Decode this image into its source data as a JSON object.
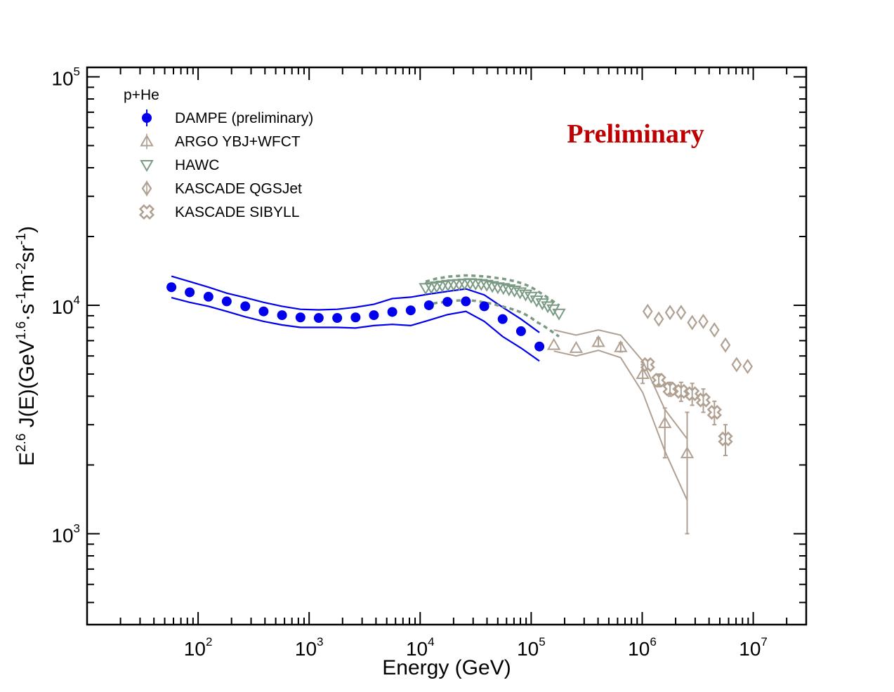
{
  "chart_data": {
    "type": "scatter",
    "title": "",
    "watermark": "Preliminary",
    "xlabel": "Energy (GeV)",
    "ylabel": {
      "base": "E",
      "exp": "2.6",
      "mid": " J(E)(GeV",
      "exp2": "1.6",
      "s": "·s",
      "exp3": "-1",
      "m": "m",
      "exp4": "-2",
      "sr": "sr",
      "exp5": "-1",
      "close": ")"
    },
    "x_scale": "log",
    "y_scale": "log",
    "xlim": [
      10,
      30000000
    ],
    "ylim": [
      400,
      110000
    ],
    "x_ticks": [
      {
        "value": 100,
        "base": "10",
        "exp": "2"
      },
      {
        "value": 1000,
        "base": "10",
        "exp": "3"
      },
      {
        "value": 10000,
        "base": "10",
        "exp": "4"
      },
      {
        "value": 100000,
        "base": "10",
        "exp": "5"
      },
      {
        "value": 1000000,
        "base": "10",
        "exp": "6"
      },
      {
        "value": 10000000,
        "base": "10",
        "exp": "7"
      }
    ],
    "y_ticks": [
      {
        "value": 1000,
        "base": "10",
        "exp": "3"
      },
      {
        "value": 10000,
        "base": "10",
        "exp": "4"
      },
      {
        "value": 100000,
        "base": "10",
        "exp": "5"
      }
    ],
    "legend_title": "p+He",
    "legend_position": "top-left",
    "series": [
      {
        "name": "DAMPE (preliminary)",
        "marker": "filled-circle",
        "color": "#0000ee",
        "x": [
          57.5,
          84,
          124,
          181,
          266,
          389,
          570,
          835,
          1220,
          1790,
          2620,
          3830,
          5610,
          8220,
          12000,
          17600,
          25800,
          37800,
          55300,
          81000,
          118600
        ],
        "y": [
          12000,
          11400,
          10900,
          10400,
          9900,
          9400,
          9050,
          8850,
          8800,
          8800,
          8850,
          9050,
          9350,
          9500,
          10000,
          10350,
          10400,
          9900,
          8700,
          7700,
          6600
        ],
        "band_upper": [
          13400,
          12700,
          12000,
          11300,
          10800,
          10300,
          9900,
          9600,
          9550,
          9600,
          9800,
          10100,
          10700,
          10850,
          11200,
          11500,
          11800,
          11100,
          9800,
          8700,
          7600
        ],
        "band_lower": [
          10800,
          10300,
          9900,
          9400,
          8900,
          8500,
          8200,
          8000,
          8000,
          8000,
          7950,
          8150,
          8250,
          8150,
          8600,
          9100,
          9400,
          8500,
          7300,
          6500,
          5700
        ]
      },
      {
        "name": "ARGO YBJ+WFCT",
        "marker": "open-triangle-up",
        "color": "#b0a092",
        "x": [
          160000,
          254000,
          403000,
          640000,
          1010000,
          1600000,
          2540000
        ],
        "y": [
          6700,
          6500,
          6900,
          6550,
          5000,
          3050,
          2250
        ],
        "y_err_upper": [
          0,
          0,
          300,
          300,
          500,
          500,
          1150
        ],
        "y_err_lower": [
          0,
          0,
          300,
          300,
          450,
          900,
          1250
        ],
        "band_upper": [
          7800,
          7400,
          7800,
          7400,
          5700,
          3500,
          2600
        ],
        "band_lower": [
          6300,
          6000,
          6350,
          5900,
          4150,
          2300,
          1400
        ]
      },
      {
        "name": "HAWC",
        "marker": "open-triangle-down",
        "color": "#7a9a84",
        "x": [
          11200,
          12600,
          14100,
          15800,
          17800,
          20000,
          22400,
          25100,
          28200,
          31600,
          35500,
          39800,
          44700,
          50100,
          56200,
          63100,
          70800,
          79400,
          89100,
          100000,
          112000,
          126000,
          141000,
          158000,
          178000
        ],
        "y": [
          11900,
          12000,
          12100,
          12200,
          12300,
          12350,
          12400,
          12450,
          12500,
          12450,
          12400,
          12300,
          12150,
          12000,
          11900,
          11750,
          11600,
          11400,
          11150,
          10900,
          10500,
          10200,
          9900,
          9600,
          9200
        ],
        "band_upper": [
          12700,
          12900,
          13100,
          13200,
          13350,
          13400,
          13450,
          13500,
          13500,
          13450,
          13400,
          13350,
          13250,
          13150,
          13050,
          12900,
          12750,
          12550,
          12300,
          12000,
          11600,
          11200,
          10800,
          10400,
          10000
        ],
        "band_lower": [
          10100,
          10150,
          10250,
          10300,
          10400,
          10450,
          10500,
          10500,
          10500,
          10450,
          10350,
          10250,
          10150,
          10000,
          9850,
          9700,
          9550,
          9350,
          9100,
          8800,
          8450,
          8200,
          7900,
          7600,
          7300
        ]
      },
      {
        "name": "KASCADE QGSJet",
        "marker": "open-diamond",
        "color": "#b0a092",
        "x": [
          1120000,
          1410000,
          1780000,
          2240000,
          2820000,
          3550000,
          4470000,
          5620000,
          7080000,
          8910000
        ],
        "y": [
          9400,
          8700,
          9300,
          9300,
          8400,
          8500,
          7800,
          6700,
          5500,
          5400
        ]
      },
      {
        "name": "KASCADE SIBYLL",
        "marker": "open-cross-circle",
        "color": "#b0a092",
        "x": [
          1120000,
          1410000,
          1780000,
          2240000,
          2820000,
          3550000,
          4470000,
          5620000
        ],
        "y": [
          5500,
          4700,
          4300,
          4200,
          4100,
          3850,
          3400,
          2600
        ],
        "y_err": [
          250,
          300,
          300,
          400,
          450,
          450,
          400,
          400
        ]
      }
    ]
  }
}
